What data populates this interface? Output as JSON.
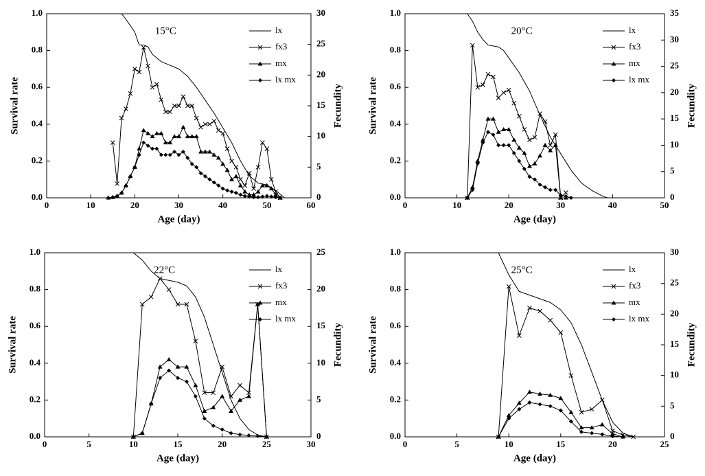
{
  "chart_data": [
    {
      "type": "line",
      "title": "15°C",
      "xlabel": "Age (day)",
      "ylabel": "Survival rate",
      "y2label": "Fecundity",
      "xlim": [
        0,
        60
      ],
      "xticks": [
        0,
        10,
        20,
        30,
        40,
        50,
        60
      ],
      "ylim": [
        0,
        1
      ],
      "yticks": [
        {
          "value": 0,
          "label": "0.0"
        },
        0.2,
        0.4,
        0.6,
        0.8,
        {
          "value": 1,
          "label": "1.0"
        }
      ],
      "y2lim": [
        0,
        30
      ],
      "y2ticks": [
        0,
        5,
        10,
        15,
        20,
        25,
        30
      ],
      "series": [
        {
          "name": "lx",
          "color": "#000000",
          "marker": "none",
          "x": [
            0,
            17,
            18,
            20,
            21,
            22,
            23,
            24,
            26,
            28,
            30,
            32,
            34,
            36,
            38,
            40,
            42,
            44,
            46,
            48,
            50,
            52,
            54
          ],
          "values": [
            1,
            1,
            0.97,
            0.9,
            0.83,
            0.83,
            0.82,
            0.78,
            0.74,
            0.72,
            0.7,
            0.66,
            0.6,
            0.53,
            0.46,
            0.38,
            0.3,
            0.2,
            0.12,
            0.08,
            0.07,
            0.04,
            0
          ]
        },
        {
          "name": "fx3",
          "color": "#000000",
          "marker": "x",
          "axis": "y2",
          "x": [
            15,
            16,
            17,
            18,
            19,
            20,
            21,
            22,
            23,
            24,
            25,
            26,
            27,
            28,
            29,
            30,
            31,
            32,
            33,
            34,
            35,
            36,
            37,
            38,
            39,
            40,
            41,
            42,
            43,
            44,
            45,
            46,
            47,
            48,
            49,
            50,
            51,
            52,
            53
          ],
          "values": [
            9,
            2.3,
            13,
            14.5,
            17,
            21,
            20.5,
            24.5,
            21.5,
            18,
            18.5,
            16,
            14,
            14,
            15,
            15,
            16.5,
            15,
            15,
            13,
            11.5,
            12,
            12,
            12.5,
            11,
            10.5,
            8,
            6,
            5,
            3,
            2,
            4,
            1.5,
            5,
            9,
            8,
            3,
            1,
            0
          ]
        },
        {
          "name": "mx",
          "color": "#000000",
          "marker": "triangle",
          "axis": "y2",
          "x": [
            14,
            15,
            16,
            17,
            18,
            19,
            20,
            21,
            22,
            23,
            24,
            25,
            26,
            27,
            28,
            29,
            30,
            31,
            32,
            33,
            34,
            35,
            36,
            37,
            38,
            39,
            40,
            41,
            42,
            43,
            44,
            45,
            46,
            47,
            48,
            49,
            50,
            51,
            52,
            53
          ],
          "values": [
            0,
            0.1,
            0.3,
            0.8,
            2,
            3.5,
            5,
            8,
            11,
            10.5,
            10,
            10.5,
            10.5,
            9,
            9,
            10,
            10,
            11.5,
            10,
            10,
            10,
            7.5,
            7.5,
            7.5,
            7,
            6.5,
            5.5,
            4.5,
            3,
            3.5,
            2,
            1,
            0.5,
            0.5,
            1,
            2,
            2,
            1.5,
            0.5,
            0
          ]
        },
        {
          "name": "lx mx",
          "color": "#000000",
          "marker": "diamond",
          "axis": "y2",
          "x": [
            14,
            15,
            16,
            17,
            18,
            19,
            20,
            21,
            22,
            23,
            24,
            25,
            26,
            27,
            28,
            29,
            30,
            31,
            32,
            33,
            34,
            35,
            36,
            37,
            38,
            39,
            40,
            41,
            42,
            43,
            44,
            45,
            46,
            47,
            48,
            49,
            50,
            51,
            52,
            53
          ],
          "values": [
            0,
            0.1,
            0.3,
            0.8,
            2,
            3.5,
            5,
            7,
            9,
            8.5,
            8,
            8,
            7,
            7,
            7,
            7.5,
            7,
            7.5,
            6.5,
            5.5,
            5,
            4,
            3.5,
            3,
            2.5,
            2,
            1.5,
            1.2,
            1,
            0.8,
            0.5,
            0.3,
            0.2,
            0.1,
            0.1,
            0.2,
            0.3,
            0.2,
            0.1,
            0
          ]
        }
      ]
    },
    {
      "type": "line",
      "title": "20°C",
      "xlabel": "Age (day)",
      "ylabel": "Survival rate",
      "y2label": "Fecundity",
      "xlim": [
        0,
        50
      ],
      "xticks": [
        0,
        10,
        20,
        30,
        40,
        50
      ],
      "ylim": [
        0,
        1
      ],
      "yticks": [
        {
          "value": 0,
          "label": "0.0"
        },
        0.2,
        0.4,
        0.6,
        0.8,
        {
          "value": 1,
          "label": "1.0"
        }
      ],
      "y2lim": [
        0,
        35
      ],
      "y2ticks": [
        0,
        5,
        10,
        15,
        20,
        25,
        30,
        35
      ],
      "series": [
        {
          "name": "lx",
          "color": "#000000",
          "marker": "none",
          "x": [
            0,
            12,
            13,
            14,
            15,
            16,
            18,
            19,
            20,
            22,
            24,
            26,
            28,
            30,
            32,
            34,
            36,
            38,
            39
          ],
          "values": [
            1,
            1,
            0.96,
            0.9,
            0.86,
            0.83,
            0.82,
            0.8,
            0.76,
            0.68,
            0.58,
            0.45,
            0.33,
            0.24,
            0.15,
            0.08,
            0.04,
            0.01,
            0
          ]
        },
        {
          "name": "fx3",
          "color": "#000000",
          "marker": "x",
          "axis": "y2",
          "x": [
            12,
            13,
            14,
            15,
            16,
            17,
            18,
            19,
            20,
            21,
            22,
            23,
            24,
            25,
            26,
            27,
            28,
            29,
            30,
            31
          ],
          "values": [
            0,
            29,
            21,
            21.5,
            23.5,
            23,
            19,
            20,
            20.5,
            18,
            15.5,
            13,
            11,
            11.5,
            16,
            14.5,
            10,
            12,
            0,
            1
          ]
        },
        {
          "name": "mx",
          "color": "#000000",
          "marker": "triangle",
          "axis": "y2",
          "x": [
            12,
            13,
            14,
            15,
            16,
            17,
            18,
            19,
            20,
            21,
            22,
            23,
            24,
            25,
            26,
            27,
            28,
            29,
            30,
            31
          ],
          "values": [
            0,
            2,
            7,
            11,
            15,
            15,
            12.5,
            13,
            13,
            11,
            9.5,
            8.5,
            6,
            6.5,
            8,
            10,
            9,
            10,
            0,
            0
          ]
        },
        {
          "name": "lx mx",
          "color": "#000000",
          "marker": "diamond",
          "axis": "y2",
          "x": [
            12,
            13,
            14,
            15,
            16,
            17,
            18,
            19,
            20,
            21,
            22,
            23,
            24,
            25,
            26,
            27,
            28,
            29,
            30,
            31,
            32
          ],
          "values": [
            0,
            1.5,
            6.5,
            10.5,
            12.5,
            12,
            10,
            10,
            10,
            8.5,
            7,
            5.5,
            4,
            3.5,
            2.5,
            2,
            1.5,
            1.5,
            0.5,
            0.3,
            0
          ]
        }
      ]
    },
    {
      "type": "line",
      "title": "22°C",
      "xlabel": "Age (day)",
      "ylabel": "Survival rate",
      "y2label": "Fecundity",
      "xlim": [
        0,
        30
      ],
      "xticks": [
        0,
        5,
        10,
        15,
        20,
        25,
        30
      ],
      "ylim": [
        0,
        1
      ],
      "yticks": [
        {
          "value": 0,
          "label": "0.0"
        },
        0.2,
        0.4,
        0.6,
        0.8,
        {
          "value": 1,
          "label": "1.0"
        }
      ],
      "y2lim": [
        0,
        25
      ],
      "y2ticks": [
        0,
        5,
        10,
        15,
        20,
        25
      ],
      "series": [
        {
          "name": "lx",
          "color": "#000000",
          "marker": "none",
          "x": [
            0,
            10,
            11,
            12,
            13,
            14,
            15,
            16,
            17,
            18,
            19,
            20,
            21,
            22,
            23,
            24,
            25
          ],
          "values": [
            1,
            1,
            0.96,
            0.9,
            0.86,
            0.85,
            0.84,
            0.82,
            0.76,
            0.65,
            0.5,
            0.35,
            0.2,
            0.1,
            0.04,
            0.01,
            0
          ]
        },
        {
          "name": "fx3",
          "color": "#000000",
          "marker": "x",
          "axis": "y2",
          "x": [
            10,
            11,
            12,
            13,
            14,
            15,
            16,
            17,
            18,
            19,
            20,
            21,
            22,
            23,
            24,
            25
          ],
          "values": [
            0,
            18,
            19,
            21.5,
            20,
            18,
            18,
            13,
            6,
            6,
            9.5,
            5.5,
            7,
            6,
            18,
            0
          ]
        },
        {
          "name": "mx",
          "color": "#000000",
          "marker": "triangle",
          "axis": "y2",
          "x": [
            10,
            11,
            12,
            13,
            14,
            15,
            16,
            17,
            18,
            19,
            20,
            21,
            22,
            23,
            24,
            25
          ],
          "values": [
            0,
            0.5,
            4.5,
            9.5,
            10.5,
            9.5,
            9.5,
            7,
            3.5,
            4,
            5.5,
            3.5,
            5,
            5.5,
            18,
            0
          ]
        },
        {
          "name": "lx mx",
          "color": "#000000",
          "marker": "diamond",
          "axis": "y2",
          "x": [
            10,
            11,
            12,
            13,
            14,
            15,
            16,
            17,
            18,
            19,
            20,
            21,
            22,
            23,
            24,
            25
          ],
          "values": [
            0,
            0.5,
            4.5,
            8,
            9,
            8,
            7.5,
            5.5,
            2.5,
            1.5,
            1,
            0.5,
            0.3,
            0.2,
            0.1,
            0
          ]
        }
      ]
    },
    {
      "type": "line",
      "title": "25°C",
      "xlabel": "Age (day)",
      "ylabel": "Survival rate",
      "y2label": "Fecundity",
      "xlim": [
        0,
        25
      ],
      "xticks": [
        0,
        5,
        10,
        15,
        20,
        25
      ],
      "ylim": [
        0,
        1
      ],
      "yticks": [
        {
          "value": 0,
          "label": "0.0"
        },
        0.2,
        0.4,
        0.6,
        0.8,
        {
          "value": 1,
          "label": "1.0"
        }
      ],
      "y2lim": [
        0,
        30
      ],
      "y2ticks": [
        0,
        5,
        10,
        15,
        20,
        25,
        30
      ],
      "series": [
        {
          "name": "lx",
          "color": "#000000",
          "marker": "none",
          "x": [
            0,
            9,
            10,
            11,
            12,
            13,
            14,
            15,
            16,
            17,
            18,
            19,
            20,
            21,
            22
          ],
          "values": [
            1,
            1,
            0.88,
            0.79,
            0.77,
            0.75,
            0.73,
            0.69,
            0.62,
            0.5,
            0.35,
            0.2,
            0.08,
            0.02,
            0
          ]
        },
        {
          "name": "fx3",
          "color": "#000000",
          "marker": "x",
          "axis": "y2",
          "x": [
            9,
            10,
            11,
            12,
            13,
            14,
            15,
            16,
            17,
            18,
            19,
            20,
            21,
            22
          ],
          "values": [
            0,
            24.5,
            16.5,
            21,
            20.5,
            19,
            17,
            10,
            4,
            4.5,
            6,
            1,
            0.3,
            0
          ]
        },
        {
          "name": "mx",
          "color": "#000000",
          "marker": "triangle",
          "axis": "y2",
          "x": [
            9,
            10,
            11,
            12,
            13,
            14,
            15,
            16,
            17,
            18,
            19,
            20,
            21
          ],
          "values": [
            0,
            3.5,
            5.5,
            7.3,
            7,
            6.8,
            6.3,
            4,
            1.5,
            1.5,
            2,
            0.5,
            0
          ]
        },
        {
          "name": "lx mx",
          "color": "#000000",
          "marker": "diamond",
          "axis": "y2",
          "x": [
            9,
            10,
            11,
            12,
            13,
            14,
            15,
            16,
            17,
            18,
            19,
            20,
            21
          ],
          "values": [
            0,
            3,
            4.5,
            5.6,
            5.3,
            5,
            4.3,
            2.5,
            0.8,
            0.6,
            0.4,
            0.1,
            0
          ]
        }
      ]
    }
  ]
}
